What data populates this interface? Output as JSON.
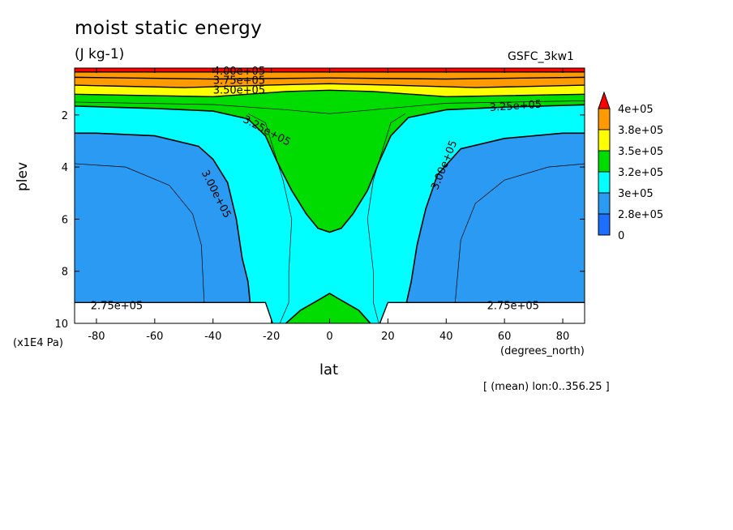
{
  "chart_data": {
    "type": "heatmap",
    "title": "moist static energy",
    "units": "(J kg-1)",
    "model": "GSFC_3kw1",
    "xlabel": "lat",
    "ylabel": "plev",
    "x_unit": "(degrees_north)",
    "y_unit": "(x1E4 Pa)",
    "footnote": "[ (mean) lon:0..356.25 ]",
    "xlim": [
      -87.5,
      87.5
    ],
    "ylim": [
      10,
      0.2
    ],
    "x_ticks": [
      -80,
      -60,
      -40,
      -20,
      0,
      20,
      40,
      60,
      80
    ],
    "y_ticks": [
      2,
      4,
      6,
      8,
      10
    ],
    "colorbar": {
      "levels": [
        "0",
        "2.8e+05",
        "3e+05",
        "3.2e+05",
        "3.5e+05",
        "3.8e+05",
        "4e+05"
      ],
      "colors": [
        "#1e6eff",
        "#2b9af2",
        "#00ffff",
        "#00dc00",
        "#ffff00",
        "#ff9a00",
        "#ff0000"
      ]
    },
    "contour_labels": [
      "4.00e+05",
      "3.75e+05",
      "3.50e+05",
      "3.25e+05",
      "3.25e+05",
      "3.00e+05",
      "3.00e+05",
      "2.75e+05",
      "2.75e+05"
    ],
    "underground_below_plev": 9.2,
    "surface_gap_lat": [
      -20,
      17
    ]
  }
}
